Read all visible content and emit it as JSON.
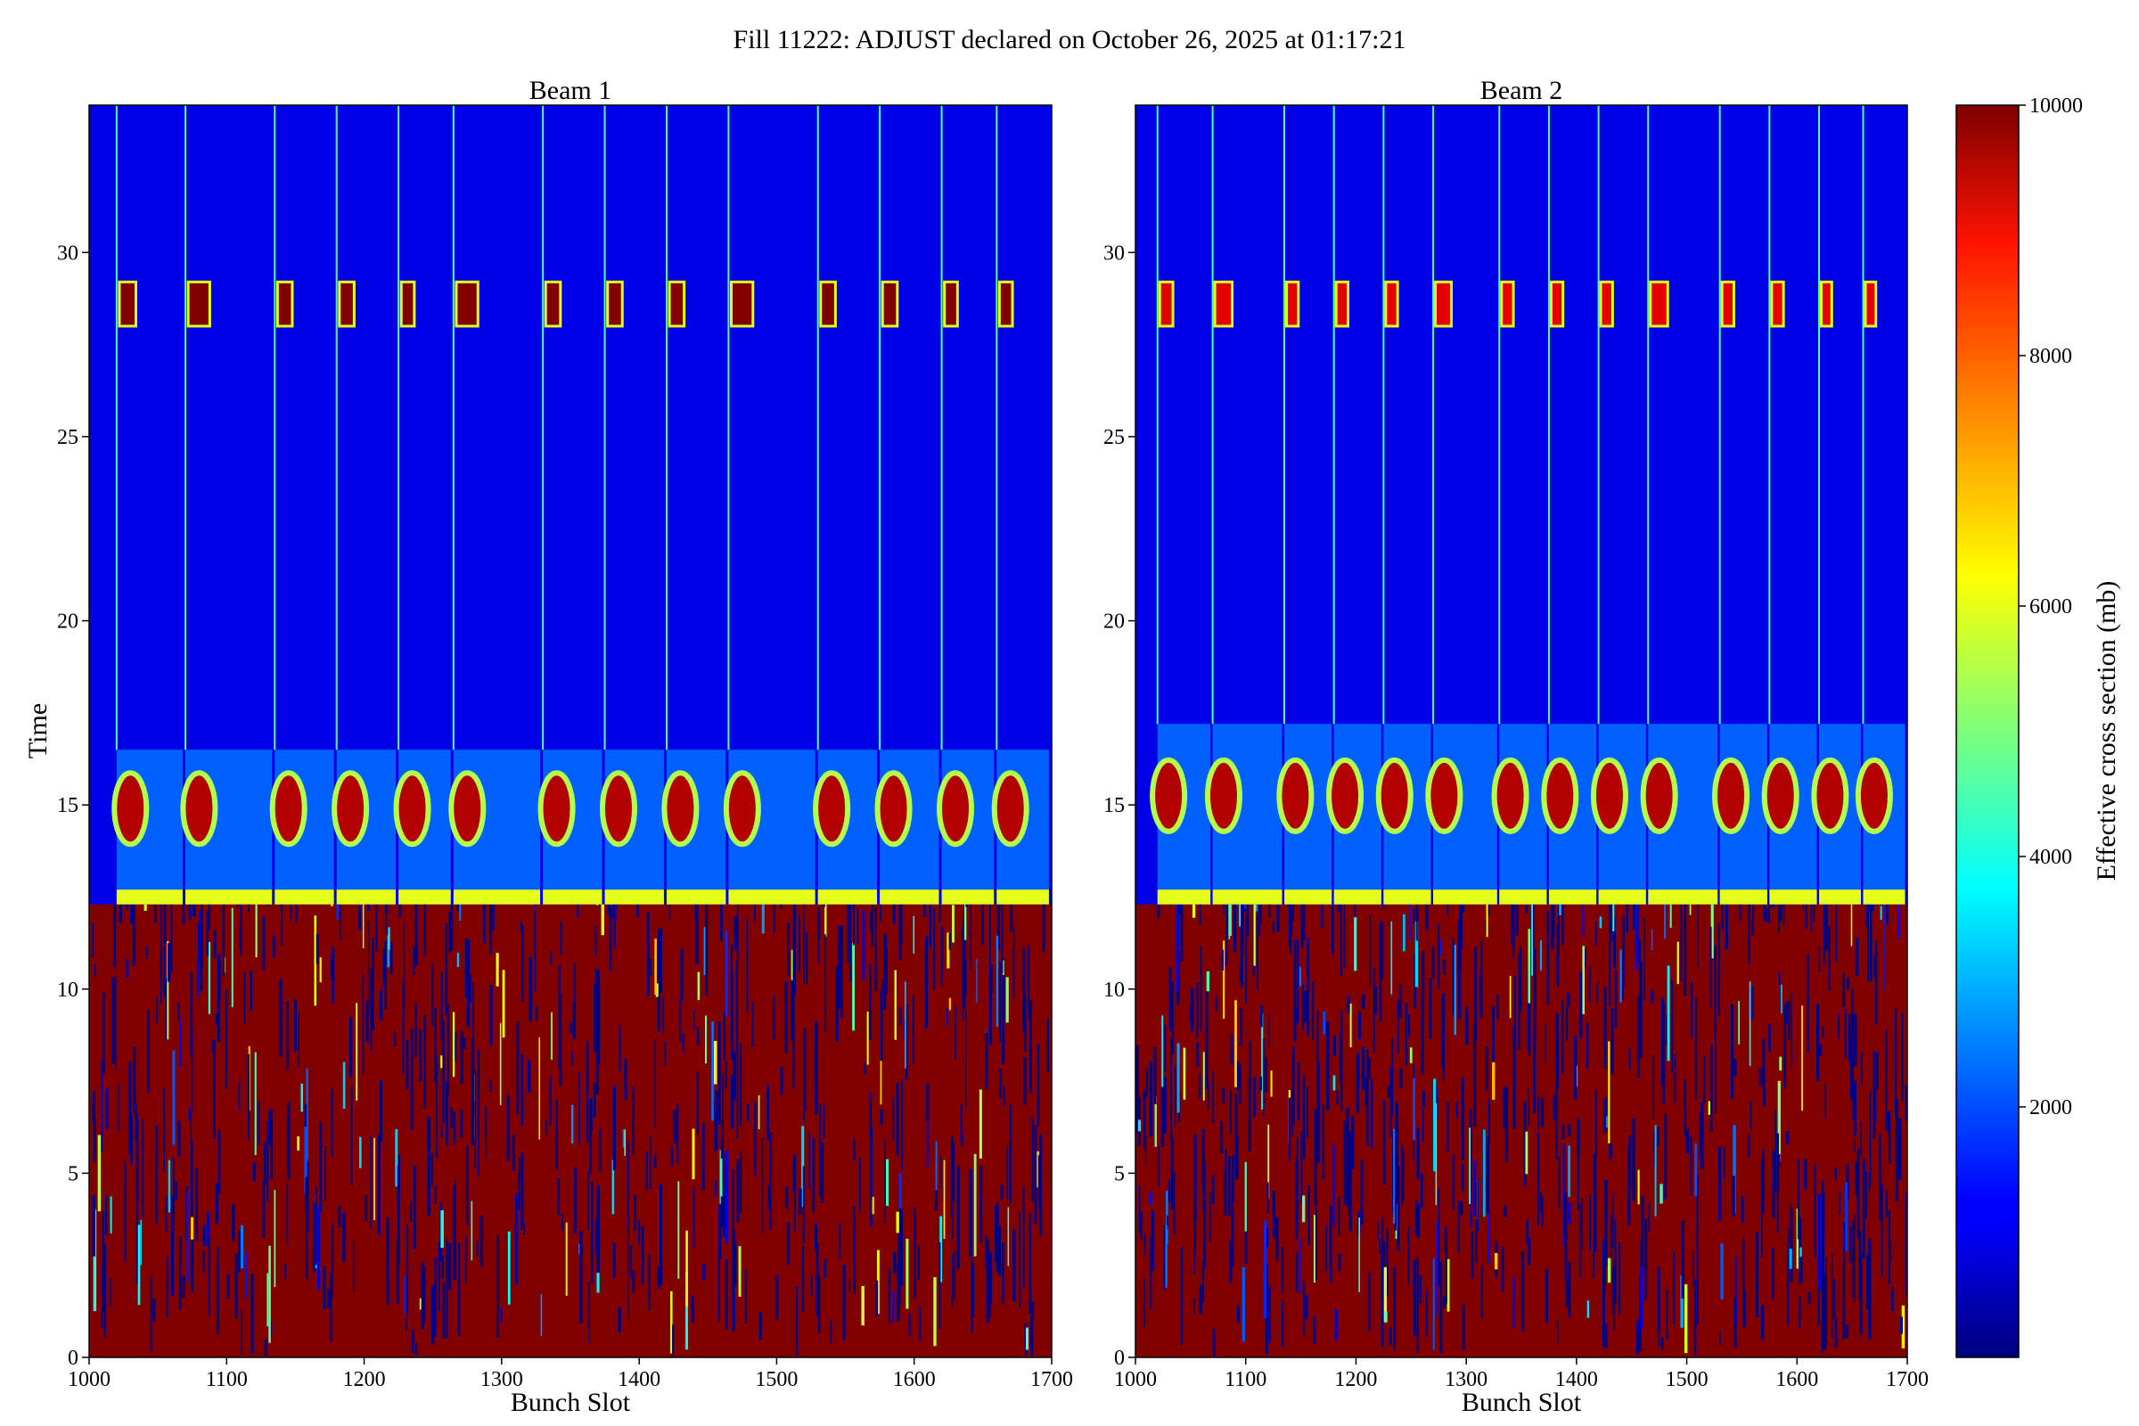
{
  "figure": {
    "suptitle": "Fill 11222: ADJUST declared on October 26, 2025 at 01:17:21"
  },
  "colorbar": {
    "label": "Effective cross section (mb)",
    "colormap": "jet",
    "range": [
      0,
      10000
    ],
    "ticks": [
      2000,
      4000,
      6000,
      8000,
      10000
    ]
  },
  "chart_data": [
    {
      "type": "heatmap",
      "title": "Beam 1",
      "xlabel": "Bunch Slot",
      "ylabel": "Time",
      "xlim": [
        1000,
        1700
      ],
      "ylim": [
        0,
        34
      ],
      "xticks": [
        1000,
        1100,
        1200,
        1300,
        1400,
        1500,
        1600,
        1700
      ],
      "yticks": [
        0,
        5,
        10,
        15,
        20,
        25,
        30
      ],
      "value_range": [
        0,
        10000
      ],
      "colormap": "jet",
      "train_starts": [
        1020,
        1070,
        1135,
        1180,
        1225,
        1265,
        1330,
        1375,
        1420,
        1465,
        1530,
        1575,
        1620,
        1660
      ],
      "saturated_region_time": [
        0,
        12.3
      ],
      "bright_band_time": [
        12.3,
        16.5
      ],
      "hotspot_time": [
        28,
        29.2
      ],
      "hotspot_value": 10000
    },
    {
      "type": "heatmap",
      "title": "Beam 2",
      "xlabel": "Bunch Slot",
      "ylabel": "",
      "xlim": [
        1000,
        1700
      ],
      "ylim": [
        0,
        34
      ],
      "xticks": [
        1000,
        1100,
        1200,
        1300,
        1400,
        1500,
        1600,
        1700
      ],
      "yticks": [
        0,
        5,
        10,
        15,
        20,
        25,
        30
      ],
      "value_range": [
        0,
        10000
      ],
      "colormap": "jet",
      "train_starts": [
        1020,
        1070,
        1135,
        1180,
        1225,
        1270,
        1330,
        1375,
        1420,
        1465,
        1530,
        1575,
        1620,
        1660
      ],
      "saturated_region_time": [
        0,
        12.3
      ],
      "bright_band_time": [
        12.3,
        17.2
      ],
      "hotspot_time": [
        28,
        29.2
      ],
      "hotspot_value": 9000
    }
  ]
}
